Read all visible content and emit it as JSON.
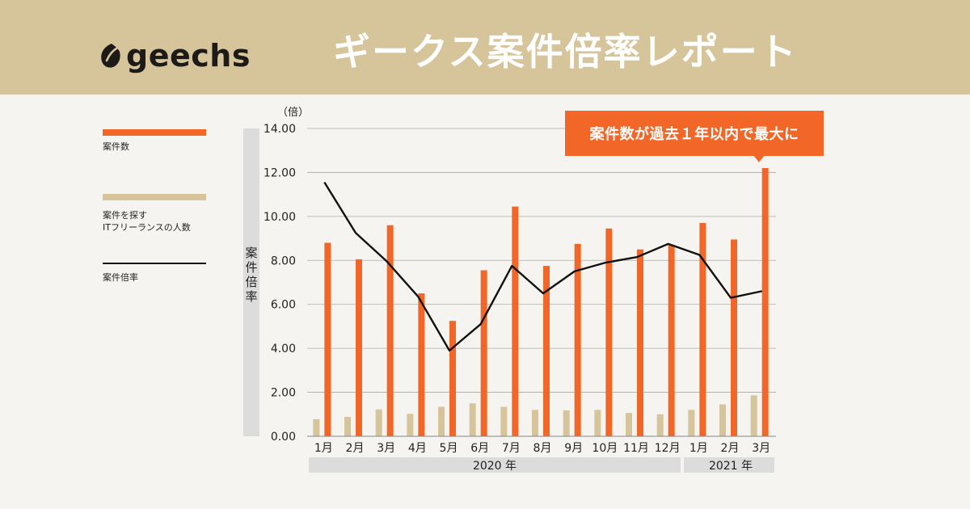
{
  "brand": {
    "logo_text": "geechs"
  },
  "header": {
    "title": "ギークス案件倍率レポート"
  },
  "callout": {
    "text": "案件数が過去１年以内で最大に"
  },
  "legend": {
    "items": [
      {
        "label": "案件数",
        "color": "#f26727"
      },
      {
        "label": "案件を探す\nITフリーランスの人数",
        "color": "#d6c49a"
      },
      {
        "label": "案件倍率",
        "color": "#111111"
      }
    ]
  },
  "colors": {
    "bar_jobs": "#f26727",
    "bar_people": "#d6c49a",
    "line": "#111111",
    "grid": "#aaaaaa",
    "axis_band": "#dcdcdc"
  },
  "chart_data": {
    "type": "bar",
    "y_unit": "（倍）",
    "ylabel": "案件倍率",
    "ylim": [
      0,
      14
    ],
    "yticks": [
      "0.00",
      "2.00",
      "4.00",
      "6.00",
      "8.00",
      "10.00",
      "12.00",
      "14.00"
    ],
    "categories": [
      "1月",
      "2月",
      "3月",
      "4月",
      "5月",
      "6月",
      "7月",
      "8月",
      "9月",
      "10月",
      "11月",
      "12月",
      "1月",
      "2月",
      "3月"
    ],
    "year_groups": [
      {
        "label": "2020 年",
        "count": 12
      },
      {
        "label": "2021 年",
        "count": 3
      }
    ],
    "series": [
      {
        "name": "案件数",
        "type": "bar",
        "values": [
          8.8,
          8.05,
          9.6,
          6.5,
          5.25,
          7.55,
          10.45,
          7.75,
          8.75,
          9.45,
          8.5,
          8.7,
          9.7,
          8.95,
          12.2
        ]
      },
      {
        "name": "案件を探すITフリーランスの人数",
        "type": "bar",
        "values": [
          0.78,
          0.88,
          1.22,
          1.02,
          1.34,
          1.5,
          1.34,
          1.2,
          1.18,
          1.2,
          1.06,
          1.0,
          1.2,
          1.45,
          1.86
        ]
      },
      {
        "name": "案件倍率",
        "type": "line",
        "values": [
          11.55,
          9.25,
          7.95,
          6.35,
          3.9,
          5.1,
          7.75,
          6.5,
          7.5,
          7.9,
          8.15,
          8.75,
          8.25,
          6.3,
          6.6
        ]
      }
    ]
  }
}
